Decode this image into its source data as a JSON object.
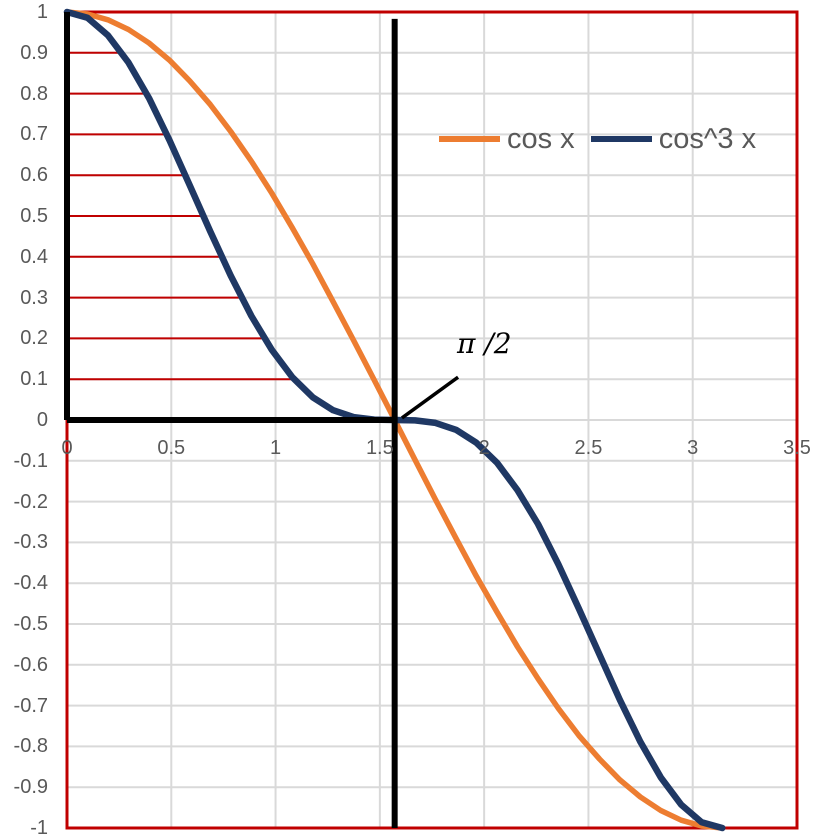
{
  "chart_data": {
    "type": "line",
    "title": "",
    "xlabel": "",
    "ylabel": "",
    "xlim": [
      0,
      3.5
    ],
    "ylim": [
      -1,
      1
    ],
    "grid": true,
    "legend_position": "top-center-inside",
    "x": [
      0,
      0.098,
      0.196,
      0.295,
      0.393,
      0.491,
      0.589,
      0.687,
      0.785,
      0.884,
      0.982,
      1.08,
      1.178,
      1.276,
      1.374,
      1.473,
      1.571,
      1.669,
      1.767,
      1.865,
      1.963,
      2.062,
      2.16,
      2.258,
      2.356,
      2.454,
      2.553,
      2.651,
      2.749,
      2.847,
      2.945,
      3.043,
      3.142
    ],
    "series": [
      {
        "name": "cos x",
        "color": "#ED7D31",
        "values": [
          1,
          0.995,
          0.981,
          0.957,
          0.924,
          0.882,
          0.831,
          0.773,
          0.707,
          0.634,
          0.556,
          0.471,
          0.383,
          0.29,
          0.195,
          0.098,
          0,
          -0.098,
          -0.195,
          -0.29,
          -0.383,
          -0.471,
          -0.556,
          -0.634,
          -0.707,
          -0.773,
          -0.831,
          -0.882,
          -0.924,
          -0.957,
          -0.981,
          -0.995,
          -1
        ]
      },
      {
        "name": "cos^3 x",
        "color": "#1F3864",
        "values": [
          1,
          0.986,
          0.943,
          0.876,
          0.789,
          0.686,
          0.575,
          0.462,
          0.354,
          0.255,
          0.172,
          0.105,
          0.056,
          0.024,
          0.007,
          0.001,
          0,
          -0.001,
          -0.007,
          -0.024,
          -0.056,
          -0.105,
          -0.172,
          -0.255,
          -0.354,
          -0.462,
          -0.575,
          -0.686,
          -0.789,
          -0.876,
          -0.943,
          -0.986,
          -1
        ]
      }
    ],
    "x_ticks": {
      "values": [
        0,
        0.5,
        1,
        1.5,
        2,
        2.5,
        3,
        3.5
      ],
      "labels": [
        "0",
        "0.5",
        "1",
        "1.5",
        "2",
        "2.5",
        "3",
        "3.5"
      ]
    },
    "y_ticks": {
      "values": [
        1,
        0.9,
        0.8,
        0.7,
        0.6,
        0.5,
        0.4,
        0.3,
        0.2,
        0.1,
        0,
        -0.1,
        -0.2,
        -0.3,
        -0.4,
        -0.5,
        -0.6,
        -0.7,
        -0.8,
        -0.9,
        -1
      ],
      "labels": [
        "1",
        "0.9",
        "0.8",
        "0.7",
        "0.6",
        "0.5",
        "0.4",
        "0.3",
        "0.2",
        "0.1",
        "0",
        "-0.1",
        "-0.2",
        "-0.3",
        "-0.4",
        "-0.5",
        "-0.6",
        "-0.7",
        "-0.8",
        "-0.9",
        "-1"
      ]
    },
    "guide_lines": {
      "color": "#C00000",
      "y_values": [
        0.9,
        0.8,
        0.7,
        0.6,
        0.5,
        0.4,
        0.3,
        0.2,
        0.1
      ],
      "x_end": [
        0.263,
        0.38,
        0.479,
        0.569,
        0.653,
        0.744,
        0.837,
        0.946,
        1.088
      ]
    },
    "construction_lines": [
      {
        "name": "unit-box-left",
        "from": [
          0,
          0
        ],
        "to": [
          0,
          1
        ]
      },
      {
        "name": "unit-box-bottom",
        "from": [
          0,
          0
        ],
        "to": [
          1.571,
          0
        ]
      },
      {
        "name": "pi-half-vertical",
        "from": [
          1.571,
          -1
        ],
        "to": [
          1.571,
          0.983
        ]
      }
    ],
    "annotation": {
      "text": "π /2",
      "label_x": 1.87,
      "label_y": 0.223,
      "pointer_from": [
        1.875,
        0.105
      ],
      "pointer_to": [
        1.606,
        0.005
      ]
    },
    "colors": {
      "plot_border": "#C00000",
      "gridline": "#D9D9D9",
      "tick_label": "#595959",
      "legend_text": "#595959",
      "construction": "#000000",
      "background": "#FFFFFF"
    }
  },
  "legend": {
    "items": [
      {
        "label": "cos x",
        "color": "#ED7D31"
      },
      {
        "label": "cos^3 x",
        "color": "#1F3864"
      }
    ]
  }
}
